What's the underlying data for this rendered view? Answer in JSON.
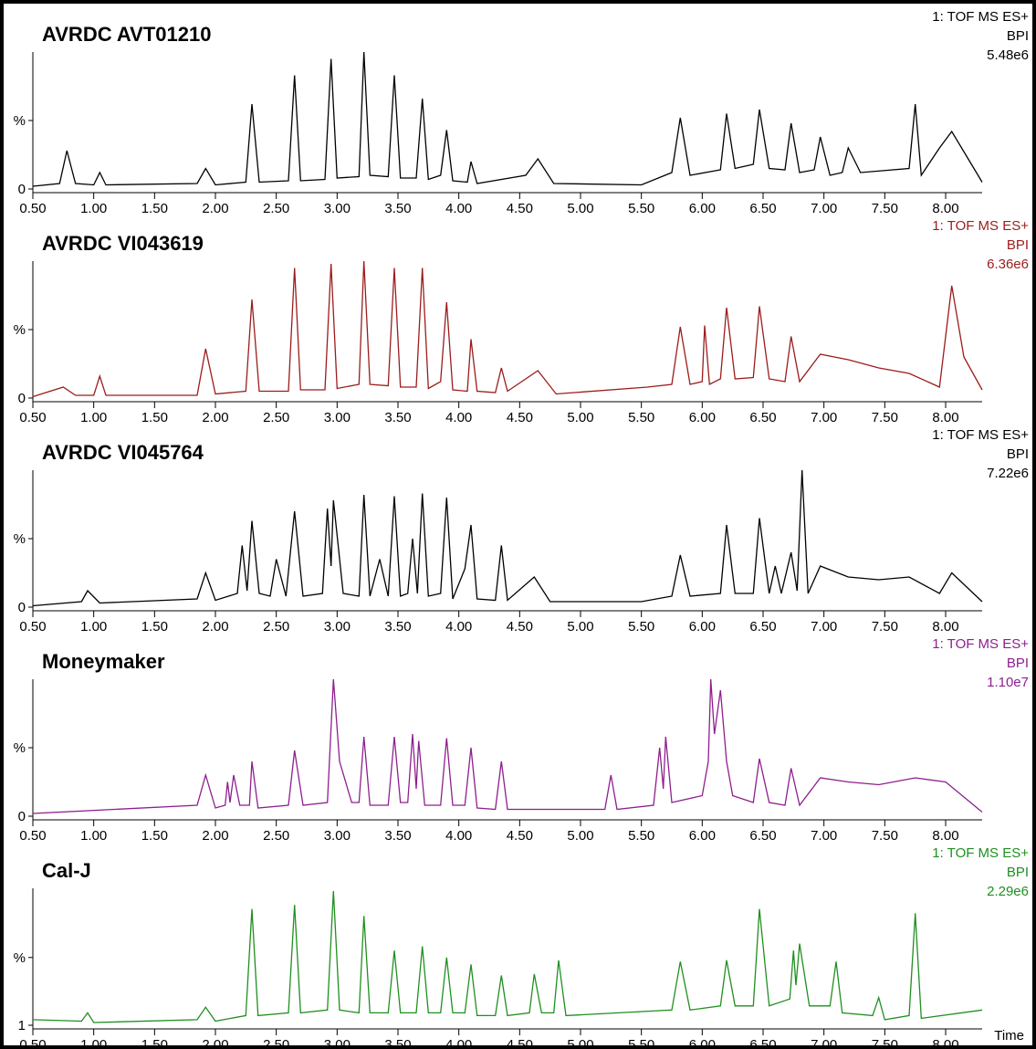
{
  "chart_data": [
    {
      "type": "line",
      "title": "AVRDC AVT01210",
      "annotations": [
        "1: TOF MS ES+",
        "BPI",
        "5.48e6"
      ],
      "color": "#000000",
      "xlim": [
        0.5,
        8.3
      ],
      "ylim": [
        0,
        100
      ],
      "xticks": [
        {
          "value": 0.5,
          "label": "0.50"
        },
        {
          "value": 1,
          "label": "1.00"
        },
        {
          "value": 1.5,
          "label": "1.50"
        },
        {
          "value": 2,
          "label": "2.00"
        },
        {
          "value": 2.5,
          "label": "2.50"
        },
        {
          "value": 3,
          "label": "3.00"
        },
        {
          "value": 3.5,
          "label": "3.50"
        },
        {
          "value": 4,
          "label": "4.00"
        },
        {
          "value": 4.5,
          "label": "4.50"
        },
        {
          "value": 5,
          "label": "5.00"
        },
        {
          "value": 5.5,
          "label": "5.50"
        },
        {
          "value": 6,
          "label": "6.00"
        },
        {
          "value": 6.5,
          "label": "6.50"
        },
        {
          "value": 7,
          "label": "7.00"
        },
        {
          "value": 7.5,
          "label": "7.50"
        },
        {
          "value": 8,
          "label": "8.00"
        }
      ],
      "yticks": [
        0,
        {
          "value": 50,
          "label": "%"
        }
      ],
      "x": [
        0.5,
        0.72,
        0.78,
        0.85,
        1.0,
        1.05,
        1.1,
        1.85,
        1.92,
        2.0,
        2.25,
        2.3,
        2.36,
        2.6,
        2.65,
        2.7,
        2.9,
        2.95,
        3.0,
        3.18,
        3.22,
        3.27,
        3.42,
        3.47,
        3.52,
        3.65,
        3.7,
        3.75,
        3.85,
        3.9,
        3.95,
        4.07,
        4.1,
        4.15,
        4.55,
        4.65,
        4.78,
        5.5,
        5.75,
        5.82,
        5.9,
        6.15,
        6.2,
        6.27,
        6.42,
        6.47,
        6.55,
        6.68,
        6.73,
        6.8,
        6.92,
        6.97,
        7.05,
        7.15,
        7.2,
        7.3,
        7.7,
        7.75,
        7.8,
        7.95,
        8.05,
        8.3
      ],
      "values": [
        2,
        4,
        28,
        4,
        3,
        12,
        3,
        4,
        15,
        3,
        5,
        62,
        5,
        6,
        83,
        6,
        7,
        95,
        8,
        9,
        100,
        10,
        9,
        83,
        8,
        8,
        66,
        7,
        10,
        43,
        6,
        5,
        20,
        4,
        10,
        22,
        4,
        3,
        12,
        52,
        10,
        14,
        55,
        15,
        18,
        58,
        15,
        14,
        48,
        12,
        14,
        38,
        10,
        12,
        30,
        12,
        15,
        62,
        10,
        30,
        42,
        5
      ]
    },
    {
      "type": "line",
      "title": "AVRDC VI043619",
      "annotations": [
        "1: TOF MS ES+",
        "BPI",
        "6.36e6"
      ],
      "color": "#9b1c1c",
      "xlim": [
        0.5,
        8.3
      ],
      "ylim": [
        0,
        100
      ],
      "xticks": [
        {
          "value": 0.5,
          "label": "0.50"
        },
        {
          "value": 1,
          "label": "1.00"
        },
        {
          "value": 1.5,
          "label": "1.50"
        },
        {
          "value": 2,
          "label": "2.00"
        },
        {
          "value": 2.5,
          "label": "2.50"
        },
        {
          "value": 3,
          "label": "3.00"
        },
        {
          "value": 3.5,
          "label": "3.50"
        },
        {
          "value": 4,
          "label": "4.00"
        },
        {
          "value": 4.5,
          "label": "4.50"
        },
        {
          "value": 5,
          "label": "5.00"
        },
        {
          "value": 5.5,
          "label": "5.50"
        },
        {
          "value": 6,
          "label": "6.00"
        },
        {
          "value": 6.5,
          "label": "6.50"
        },
        {
          "value": 7,
          "label": "7.00"
        },
        {
          "value": 7.5,
          "label": "7.50"
        },
        {
          "value": 8,
          "label": "8.00"
        }
      ],
      "yticks": [
        0,
        {
          "value": 50,
          "label": "%"
        }
      ],
      "x": [
        0.5,
        0.75,
        0.85,
        1.0,
        1.05,
        1.1,
        1.85,
        1.92,
        2.0,
        2.25,
        2.3,
        2.36,
        2.6,
        2.65,
        2.7,
        2.9,
        2.95,
        3.0,
        3.18,
        3.22,
        3.27,
        3.42,
        3.47,
        3.52,
        3.65,
        3.7,
        3.75,
        3.85,
        3.9,
        3.95,
        4.07,
        4.1,
        4.15,
        4.3,
        4.35,
        4.4,
        4.65,
        4.8,
        5.55,
        5.75,
        5.82,
        5.9,
        6.0,
        6.02,
        6.06,
        6.15,
        6.2,
        6.27,
        6.42,
        6.47,
        6.55,
        6.68,
        6.73,
        6.8,
        6.97,
        7.2,
        7.45,
        7.7,
        7.95,
        8.05,
        8.15,
        8.3
      ],
      "values": [
        1,
        8,
        2,
        2,
        16,
        2,
        2,
        36,
        3,
        5,
        72,
        5,
        5,
        95,
        6,
        6,
        98,
        7,
        10,
        100,
        10,
        9,
        95,
        8,
        8,
        95,
        7,
        12,
        70,
        6,
        5,
        43,
        5,
        4,
        22,
        5,
        20,
        3,
        8,
        10,
        52,
        10,
        12,
        53,
        10,
        14,
        66,
        14,
        15,
        67,
        14,
        12,
        45,
        12,
        32,
        28,
        22,
        18,
        8,
        82,
        30,
        6
      ]
    },
    {
      "type": "line",
      "title": "AVRDC VI045764",
      "annotations": [
        "1: TOF MS ES+",
        "BPI",
        "7.22e6"
      ],
      "color": "#000000",
      "xlim": [
        0.5,
        8.3
      ],
      "ylim": [
        0,
        100
      ],
      "xticks": [
        {
          "value": 0.5,
          "label": "0.50"
        },
        {
          "value": 1,
          "label": "1.00"
        },
        {
          "value": 1.5,
          "label": "1.50"
        },
        {
          "value": 2,
          "label": "2.00"
        },
        {
          "value": 2.5,
          "label": "2.50"
        },
        {
          "value": 3,
          "label": "3.00"
        },
        {
          "value": 3.5,
          "label": "3.50"
        },
        {
          "value": 4,
          "label": "4.00"
        },
        {
          "value": 4.5,
          "label": "4.50"
        },
        {
          "value": 5,
          "label": "5.00"
        },
        {
          "value": 5.5,
          "label": "5.50"
        },
        {
          "value": 6,
          "label": "6.00"
        },
        {
          "value": 6.5,
          "label": "6.50"
        },
        {
          "value": 7,
          "label": "7.00"
        },
        {
          "value": 7.5,
          "label": "7.50"
        },
        {
          "value": 8,
          "label": "8.00"
        }
      ],
      "yticks": [
        0,
        {
          "value": 50,
          "label": "%"
        }
      ],
      "x": [
        0.5,
        0.9,
        0.95,
        1.05,
        1.85,
        1.92,
        2.0,
        2.18,
        2.22,
        2.26,
        2.3,
        2.36,
        2.45,
        2.5,
        2.58,
        2.65,
        2.72,
        2.88,
        2.92,
        2.95,
        2.97,
        3.05,
        3.18,
        3.22,
        3.27,
        3.35,
        3.42,
        3.47,
        3.52,
        3.58,
        3.62,
        3.66,
        3.7,
        3.75,
        3.85,
        3.9,
        3.95,
        4.05,
        4.1,
        4.15,
        4.3,
        4.35,
        4.4,
        4.62,
        4.75,
        5.5,
        5.75,
        5.82,
        5.9,
        6.15,
        6.2,
        6.27,
        6.42,
        6.47,
        6.55,
        6.6,
        6.65,
        6.73,
        6.78,
        6.82,
        6.87,
        6.97,
        7.2,
        7.45,
        7.7,
        7.95,
        8.05,
        8.3
      ],
      "values": [
        1,
        4,
        12,
        3,
        6,
        25,
        5,
        10,
        45,
        12,
        63,
        10,
        8,
        35,
        8,
        70,
        8,
        10,
        72,
        30,
        78,
        10,
        8,
        82,
        8,
        35,
        8,
        81,
        8,
        10,
        50,
        10,
        83,
        8,
        10,
        80,
        6,
        28,
        60,
        6,
        5,
        45,
        5,
        22,
        4,
        4,
        8,
        38,
        8,
        10,
        60,
        10,
        10,
        65,
        10,
        30,
        10,
        40,
        12,
        100,
        10,
        30,
        22,
        20,
        22,
        10,
        25,
        4
      ]
    },
    {
      "type": "line",
      "title": "Moneymaker",
      "annotations": [
        "1: TOF MS ES+",
        "BPI",
        "1.10e7"
      ],
      "color": "#8e1f8e",
      "xlim": [
        0.5,
        8.3
      ],
      "ylim": [
        0,
        100
      ],
      "xticks": [
        {
          "value": 0.5,
          "label": "0.50"
        },
        {
          "value": 1,
          "label": "1.00"
        },
        {
          "value": 1.5,
          "label": "1.50"
        },
        {
          "value": 2,
          "label": "2.00"
        },
        {
          "value": 2.5,
          "label": "2.50"
        },
        {
          "value": 3,
          "label": "3.00"
        },
        {
          "value": 3.5,
          "label": "3.50"
        },
        {
          "value": 4,
          "label": "4.00"
        },
        {
          "value": 4.5,
          "label": "4.50"
        },
        {
          "value": 5,
          "label": "5.00"
        },
        {
          "value": 5.5,
          "label": "5.50"
        },
        {
          "value": 6,
          "label": "6.00"
        },
        {
          "value": 6.5,
          "label": "6.50"
        },
        {
          "value": 7,
          "label": "7.00"
        },
        {
          "value": 7.5,
          "label": "7.50"
        },
        {
          "value": 8,
          "label": "8.00"
        }
      ],
      "yticks": [
        0,
        {
          "value": 50,
          "label": "%"
        }
      ],
      "x": [
        0.5,
        1.85,
        1.92,
        2.0,
        2.08,
        2.1,
        2.12,
        2.15,
        2.2,
        2.28,
        2.3,
        2.35,
        2.6,
        2.65,
        2.72,
        2.92,
        2.97,
        3.02,
        3.12,
        3.18,
        3.22,
        3.27,
        3.42,
        3.47,
        3.52,
        3.58,
        3.62,
        3.65,
        3.67,
        3.72,
        3.85,
        3.9,
        3.95,
        4.05,
        4.1,
        4.15,
        4.3,
        4.35,
        4.4,
        5.2,
        5.25,
        5.3,
        5.6,
        5.65,
        5.68,
        5.7,
        5.75,
        6.0,
        6.05,
        6.07,
        6.1,
        6.15,
        6.2,
        6.25,
        6.42,
        6.47,
        6.55,
        6.68,
        6.73,
        6.8,
        6.97,
        7.2,
        7.45,
        7.75,
        8.0,
        8.3
      ],
      "values": [
        2,
        8,
        30,
        6,
        8,
        25,
        10,
        30,
        8,
        8,
        40,
        6,
        8,
        48,
        8,
        10,
        100,
        40,
        10,
        10,
        58,
        8,
        8,
        58,
        10,
        10,
        60,
        20,
        55,
        8,
        8,
        57,
        8,
        8,
        50,
        6,
        5,
        40,
        5,
        5,
        30,
        5,
        8,
        50,
        20,
        58,
        10,
        15,
        40,
        100,
        60,
        92,
        40,
        15,
        10,
        42,
        10,
        8,
        35,
        8,
        28,
        25,
        23,
        28,
        25,
        3
      ]
    },
    {
      "type": "line",
      "title": "Cal-J",
      "annotations": [
        "1: TOF MS ES+",
        "BPI",
        "2.29e6"
      ],
      "color": "#1f8f1f",
      "xlabel": "Time",
      "xlim": [
        0.5,
        8.3
      ],
      "ylim": [
        1,
        100
      ],
      "xticks": [
        {
          "value": 0.5,
          "label": "0.50"
        },
        {
          "value": 1,
          "label": "1.00"
        },
        {
          "value": 1.5,
          "label": "1.50"
        },
        {
          "value": 2,
          "label": "2.00"
        },
        {
          "value": 2.5,
          "label": "2.50"
        },
        {
          "value": 3,
          "label": "3.00"
        },
        {
          "value": 3.5,
          "label": "3.50"
        },
        {
          "value": 4,
          "label": "4.00"
        },
        {
          "value": 4.5,
          "label": "4.50"
        },
        {
          "value": 5,
          "label": "5.00"
        },
        {
          "value": 5.5,
          "label": "5.50"
        },
        {
          "value": 6,
          "label": "6.00"
        },
        {
          "value": 6.5,
          "label": "6.50"
        },
        {
          "value": 7,
          "label": "7.00"
        },
        {
          "value": 7.5,
          "label": "7.50"
        },
        {
          "value": 8,
          "label": "8.00"
        }
      ],
      "yticks": [
        1,
        {
          "value": 50,
          "label": "%"
        }
      ],
      "x": [
        0.5,
        0.9,
        0.95,
        1.0,
        1.85,
        1.92,
        2.0,
        2.25,
        2.3,
        2.35,
        2.6,
        2.65,
        2.7,
        2.92,
        2.97,
        3.02,
        3.18,
        3.22,
        3.27,
        3.42,
        3.47,
        3.52,
        3.65,
        3.7,
        3.75,
        3.85,
        3.9,
        3.95,
        4.05,
        4.1,
        4.15,
        4.3,
        4.35,
        4.4,
        4.58,
        4.62,
        4.68,
        4.78,
        4.82,
        4.88,
        5.75,
        5.82,
        5.9,
        6.15,
        6.2,
        6.27,
        6.42,
        6.47,
        6.55,
        6.72,
        6.75,
        6.77,
        6.8,
        6.88,
        7.05,
        7.1,
        7.15,
        7.4,
        7.45,
        7.5,
        7.7,
        7.75,
        7.8,
        8.3
      ],
      "values": [
        5,
        4,
        10,
        3,
        5,
        14,
        4,
        8,
        85,
        8,
        10,
        88,
        10,
        12,
        98,
        12,
        10,
        80,
        10,
        10,
        55,
        10,
        10,
        58,
        10,
        10,
        50,
        10,
        10,
        45,
        8,
        8,
        37,
        8,
        10,
        38,
        10,
        10,
        48,
        8,
        12,
        47,
        12,
        15,
        48,
        15,
        15,
        85,
        15,
        20,
        55,
        30,
        60,
        15,
        15,
        47,
        10,
        8,
        21,
        5,
        8,
        82,
        6,
        12
      ]
    }
  ]
}
